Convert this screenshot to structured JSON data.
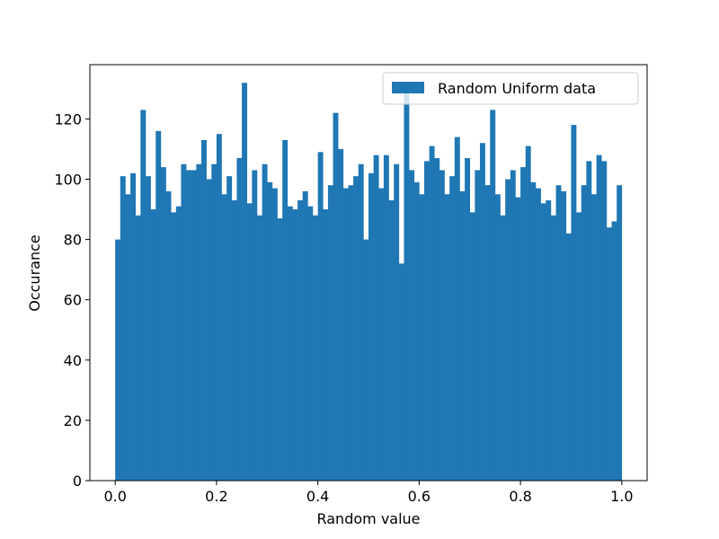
{
  "chart_data": {
    "type": "bar",
    "subtype": "histogram",
    "xlabel": "Random value",
    "ylabel": "Occurance",
    "xlim": [
      -0.05,
      1.05
    ],
    "ylim": [
      0,
      138
    ],
    "x_ticks": [
      0.0,
      0.2,
      0.4,
      0.6,
      0.8,
      1.0
    ],
    "x_tick_labels": [
      "0.0",
      "0.2",
      "0.4",
      "0.6",
      "0.8",
      "1.0"
    ],
    "y_ticks": [
      0,
      20,
      40,
      60,
      80,
      100,
      120
    ],
    "y_tick_labels": [
      "0",
      "20",
      "40",
      "60",
      "80",
      "100",
      "120"
    ],
    "bin_range": [
      0,
      1
    ],
    "bin_count": 100,
    "grid": false,
    "legend_position": "top-right",
    "series": [
      {
        "name": "Random Uniform data",
        "color": "#1f77b4",
        "values": [
          80,
          101,
          95,
          102,
          88,
          123,
          101,
          90,
          116,
          104,
          96,
          89,
          91,
          105,
          103,
          103,
          105,
          113,
          100,
          105,
          115,
          95,
          101,
          93,
          107,
          132,
          92,
          103,
          88,
          105,
          99,
          97,
          87,
          113,
          91,
          90,
          93,
          96,
          91,
          88,
          109,
          90,
          98,
          122,
          110,
          97,
          98,
          101,
          105,
          80,
          102,
          108,
          97,
          108,
          93,
          105,
          72,
          130,
          103,
          99,
          95,
          106,
          111,
          107,
          103,
          95,
          101,
          114,
          96,
          107,
          89,
          103,
          112,
          98,
          123,
          95,
          88,
          100,
          103,
          94,
          104,
          111,
          99,
          97,
          92,
          93,
          88,
          98,
          96,
          82,
          118,
          89,
          98,
          106,
          95,
          108,
          106,
          84,
          86,
          98
        ]
      }
    ]
  }
}
